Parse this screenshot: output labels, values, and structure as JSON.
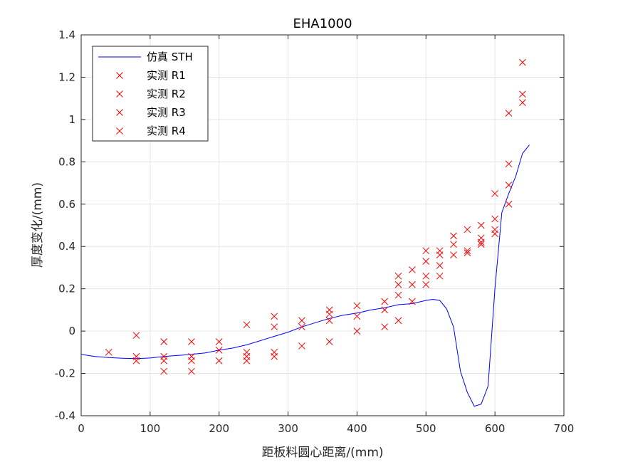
{
  "chart_data": {
    "type": "line",
    "title": "EHA1000",
    "xlabel": "距板料圆心距离/(mm)",
    "ylabel": "厚度变化/(mm)",
    "xlim": [
      0,
      700
    ],
    "ylim": [
      -0.4,
      1.4
    ],
    "xticks": [
      0,
      100,
      200,
      300,
      400,
      500,
      600,
      700
    ],
    "yticks": [
      -0.4,
      -0.2,
      0,
      0.2,
      0.4,
      0.6,
      0.8,
      1,
      1.2,
      1.4
    ],
    "grid": true,
    "legend_position": "top-left",
    "line_color": "#0000ff",
    "marker_color": "#ff0000",
    "series": [
      {
        "name": "仿真 STH",
        "style": "line",
        "x": [
          0,
          20,
          40,
          60,
          80,
          100,
          120,
          140,
          160,
          180,
          200,
          220,
          240,
          260,
          280,
          300,
          320,
          340,
          360,
          380,
          400,
          420,
          440,
          460,
          480,
          500,
          510,
          520,
          530,
          540,
          550,
          560,
          570,
          580,
          590,
          600,
          610,
          620,
          630,
          640,
          650
        ],
        "y": [
          -0.11,
          -0.12,
          -0.125,
          -0.128,
          -0.13,
          -0.127,
          -0.12,
          -0.115,
          -0.11,
          -0.103,
          -0.09,
          -0.08,
          -0.065,
          -0.045,
          -0.025,
          -0.005,
          0.02,
          0.04,
          0.06,
          0.075,
          0.085,
          0.1,
          0.11,
          0.125,
          0.13,
          0.145,
          0.15,
          0.145,
          0.105,
          0.02,
          -0.19,
          -0.29,
          -0.355,
          -0.345,
          -0.26,
          0.2,
          0.56,
          0.65,
          0.73,
          0.84,
          0.88
        ]
      },
      {
        "name": "实测 R1",
        "style": "marker",
        "x": [
          40,
          80,
          120,
          160,
          200,
          240,
          280,
          320,
          360,
          400,
          440,
          460,
          480,
          500,
          520,
          540,
          560,
          580,
          600,
          620,
          640
        ],
        "y": [
          -0.1,
          -0.02,
          -0.05,
          -0.05,
          -0.05,
          0.03,
          0.07,
          0.05,
          0.1,
          0.12,
          0.14,
          0.26,
          0.29,
          0.38,
          0.38,
          0.45,
          0.48,
          0.5,
          0.65,
          1.03,
          1.27
        ]
      },
      {
        "name": "实测 R2",
        "style": "marker",
        "x": [
          80,
          120,
          160,
          200,
          240,
          280,
          320,
          360,
          400,
          440,
          460,
          480,
          500,
          520,
          540,
          560,
          580,
          600,
          620,
          640
        ],
        "y": [
          -0.12,
          -0.12,
          -0.12,
          -0.09,
          -0.1,
          -0.1,
          0.02,
          0.08,
          0.07,
          0.1,
          0.22,
          0.22,
          0.33,
          0.36,
          0.41,
          0.38,
          0.44,
          0.53,
          0.79,
          1.12
        ]
      },
      {
        "name": "实测 R3",
        "style": "marker",
        "x": [
          80,
          120,
          160,
          200,
          240,
          280,
          320,
          360,
          400,
          440,
          460,
          480,
          500,
          520,
          540,
          560,
          580,
          600,
          620,
          640
        ],
        "y": [
          -0.14,
          -0.14,
          -0.14,
          -0.14,
          -0.12,
          -0.12,
          -0.07,
          0.05,
          0.0,
          0.02,
          0.17,
          0.14,
          0.26,
          0.31,
          0.36,
          0.37,
          0.42,
          0.48,
          0.69,
          1.08
        ]
      },
      {
        "name": "实测 R4",
        "style": "marker",
        "x": [
          120,
          160,
          240,
          280,
          360,
          460,
          500,
          520,
          580,
          600,
          620
        ],
        "y": [
          -0.19,
          -0.19,
          -0.14,
          0.02,
          -0.05,
          0.05,
          0.22,
          0.26,
          0.41,
          0.46,
          0.6
        ]
      }
    ]
  }
}
